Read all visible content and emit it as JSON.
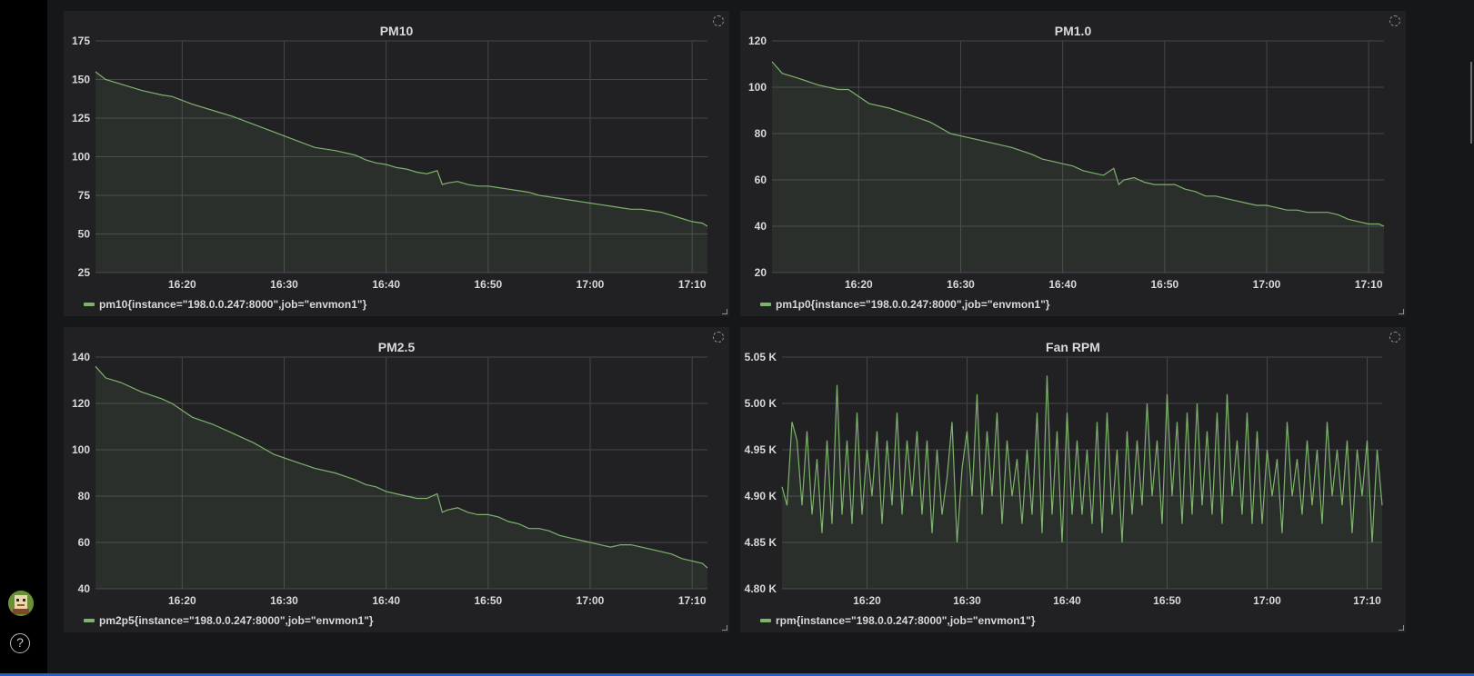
{
  "sidebar": {
    "help_label": "?"
  },
  "colors": {
    "series": "#7eb26d",
    "panel_bg": "#212124",
    "grid": "#464648"
  },
  "panels": [
    {
      "title": "PM10",
      "legend": "pm10{instance=\"198.0.0.247:8000\",job=\"envmon1\"}"
    },
    {
      "title": "PM1.0",
      "legend": "pm1p0{instance=\"198.0.0.247:8000\",job=\"envmon1\"}"
    },
    {
      "title": "PM2.5",
      "legend": "pm2p5{instance=\"198.0.0.247:8000\",job=\"envmon1\"}"
    },
    {
      "title": "Fan RPM",
      "legend": "rpm{instance=\"198.0.0.247:8000\",job=\"envmon1\"}"
    }
  ],
  "chart_data": [
    {
      "type": "area",
      "title": "PM10",
      "xlabel": "",
      "ylabel": "",
      "ylim": [
        25,
        175
      ],
      "yticks": [
        "25",
        "50",
        "75",
        "100",
        "125",
        "150",
        "175"
      ],
      "xticks": [
        "16:20",
        "16:30",
        "16:40",
        "16:50",
        "17:00",
        "17:10"
      ],
      "x_range_min": [
        11.5,
        71.5
      ],
      "series": [
        {
          "name": "pm10{instance=\"198.0.0.247:8000\",job=\"envmon1\"}",
          "x": [
            11.5,
            12.5,
            14,
            16,
            18,
            19,
            21,
            23,
            25,
            27,
            29,
            31,
            33,
            35,
            37,
            38,
            39,
            40,
            41,
            42,
            43,
            44,
            45,
            45.5,
            46,
            47,
            48,
            49,
            50,
            51,
            52,
            53,
            54,
            55,
            56,
            57,
            58,
            59,
            60,
            61,
            62,
            63,
            64,
            65,
            66,
            67,
            68,
            69,
            70,
            71,
            71.5
          ],
          "y": [
            155,
            150,
            147,
            143,
            140,
            139,
            134,
            130,
            126,
            121,
            116,
            111,
            106,
            104,
            101,
            98,
            96,
            95,
            93,
            92,
            90,
            89,
            91,
            82,
            83,
            84,
            82,
            81,
            81,
            80,
            79,
            78,
            77,
            75,
            74,
            73,
            72,
            71,
            70,
            69,
            68,
            67,
            66,
            66,
            65,
            64,
            62,
            60,
            58,
            57,
            55
          ]
        }
      ]
    },
    {
      "type": "area",
      "title": "PM1.0",
      "xlabel": "",
      "ylabel": "",
      "ylim": [
        20,
        120
      ],
      "yticks": [
        "20",
        "40",
        "60",
        "80",
        "100",
        "120"
      ],
      "xticks": [
        "16:20",
        "16:30",
        "16:40",
        "16:50",
        "17:00",
        "17:10"
      ],
      "x_range_min": [
        11.5,
        71.5
      ],
      "series": [
        {
          "name": "pm1p0{instance=\"198.0.0.247:8000\",job=\"envmon1\"}",
          "x": [
            11.5,
            12.5,
            14,
            16,
            18,
            19,
            21,
            23,
            25,
            27,
            29,
            31,
            33,
            35,
            37,
            38,
            39,
            40,
            41,
            42,
            43,
            44,
            45,
            45.5,
            46,
            47,
            48,
            49,
            50,
            51,
            52,
            53,
            54,
            55,
            56,
            57,
            58,
            59,
            60,
            61,
            62,
            63,
            64,
            65,
            66,
            67,
            68,
            69,
            70,
            71,
            71.5
          ],
          "y": [
            111,
            106,
            104,
            101,
            99,
            99,
            93,
            91,
            88,
            85,
            80,
            78,
            76,
            74,
            71,
            69,
            68,
            67,
            66,
            64,
            63,
            62,
            65,
            58,
            60,
            61,
            59,
            58,
            58,
            58,
            56,
            55,
            53,
            53,
            52,
            51,
            50,
            49,
            49,
            48,
            47,
            47,
            46,
            46,
            46,
            45,
            43,
            42,
            41,
            41,
            40
          ]
        }
      ]
    },
    {
      "type": "area",
      "title": "PM2.5",
      "xlabel": "",
      "ylabel": "",
      "ylim": [
        40,
        140
      ],
      "yticks": [
        "40",
        "60",
        "80",
        "100",
        "120",
        "140"
      ],
      "xticks": [
        "16:20",
        "16:30",
        "16:40",
        "16:50",
        "17:00",
        "17:10"
      ],
      "x_range_min": [
        11.5,
        71.5
      ],
      "series": [
        {
          "name": "pm2p5{instance=\"198.0.0.247:8000\",job=\"envmon1\"}",
          "x": [
            11.5,
            12.5,
            14,
            16,
            18,
            19,
            21,
            23,
            25,
            27,
            29,
            31,
            33,
            35,
            37,
            38,
            39,
            40,
            41,
            42,
            43,
            44,
            45,
            45.5,
            46,
            47,
            48,
            49,
            50,
            51,
            52,
            53,
            54,
            55,
            56,
            57,
            58,
            59,
            60,
            61,
            62,
            63,
            64,
            65,
            66,
            67,
            68,
            69,
            70,
            71,
            71.5
          ],
          "y": [
            136,
            131,
            129,
            125,
            122,
            120,
            114,
            111,
            107,
            103,
            98,
            95,
            92,
            90,
            87,
            85,
            84,
            82,
            81,
            80,
            79,
            79,
            81,
            73,
            74,
            75,
            73,
            72,
            72,
            71,
            69,
            68,
            66,
            66,
            65,
            63,
            62,
            61,
            60,
            59,
            58,
            59,
            59,
            58,
            57,
            56,
            55,
            53,
            52,
            51,
            49
          ]
        }
      ]
    },
    {
      "type": "area",
      "title": "Fan RPM",
      "xlabel": "",
      "ylabel": "",
      "ylim": [
        4800,
        5050
      ],
      "yticks": [
        "4.80 K",
        "4.85 K",
        "4.90 K",
        "4.95 K",
        "5.00 K",
        "5.05 K"
      ],
      "xticks": [
        "16:20",
        "16:30",
        "16:40",
        "16:50",
        "17:00",
        "17:10"
      ],
      "x_range_min": [
        11.5,
        71.5
      ],
      "series": [
        {
          "name": "rpm{instance=\"198.0.0.247:8000\",job=\"envmon1\"}",
          "x": [
            11.5,
            12,
            12.5,
            13,
            13.5,
            14,
            14.5,
            15,
            15.5,
            16,
            16.5,
            17,
            17.5,
            18,
            18.5,
            19,
            19.5,
            20,
            20.5,
            21,
            21.5,
            22,
            22.5,
            23,
            23.5,
            24,
            24.5,
            25,
            25.5,
            26,
            26.5,
            27,
            27.5,
            28,
            28.5,
            29,
            29.5,
            30,
            30.5,
            31,
            31.5,
            32,
            32.5,
            33,
            33.5,
            34,
            34.5,
            35,
            35.5,
            36,
            36.5,
            37,
            37.5,
            38,
            38.5,
            39,
            39.5,
            40,
            40.5,
            41,
            41.5,
            42,
            42.5,
            43,
            43.5,
            44,
            44.5,
            45,
            45.5,
            46,
            46.5,
            47,
            47.5,
            48,
            48.5,
            49,
            49.5,
            50,
            50.5,
            51,
            51.5,
            52,
            52.5,
            53,
            53.5,
            54,
            54.5,
            55,
            55.5,
            56,
            56.5,
            57,
            57.5,
            58,
            58.5,
            59,
            59.5,
            60,
            60.5,
            61,
            61.5,
            62,
            62.5,
            63,
            63.5,
            64,
            64.5,
            65,
            65.5,
            66,
            66.5,
            67,
            67.5,
            68,
            68.5,
            69,
            69.5,
            70,
            70.5,
            71,
            71.5
          ],
          "y": [
            4910,
            4890,
            4980,
            4960,
            4890,
            4970,
            4880,
            4940,
            4860,
            4960,
            4870,
            5020,
            4880,
            4960,
            4870,
            4990,
            4880,
            4950,
            4900,
            4970,
            4870,
            4960,
            4890,
            4990,
            4880,
            4960,
            4900,
            4970,
            4880,
            4960,
            4860,
            4950,
            4880,
            4920,
            4980,
            4850,
            4930,
            4970,
            4900,
            5010,
            4880,
            4970,
            4900,
            4990,
            4870,
            4960,
            4900,
            4940,
            4870,
            4950,
            4880,
            4990,
            4860,
            5030,
            4880,
            4970,
            4850,
            4990,
            4880,
            4960,
            4880,
            4950,
            4870,
            4980,
            4860,
            4990,
            4880,
            4950,
            4850,
            4970,
            4880,
            4960,
            4890,
            5000,
            4900,
            4960,
            4870,
            5010,
            4900,
            4980,
            4870,
            4990,
            4880,
            5000,
            4890,
            4970,
            4880,
            4990,
            4870,
            5010,
            4900,
            4960,
            4880,
            4990,
            4870,
            4970,
            4870,
            4950,
            4900,
            4940,
            4860,
            4980,
            4900,
            4940,
            4880,
            4960,
            4890,
            4950,
            4870,
            4980,
            4900,
            4950,
            4890,
            4960,
            4860,
            4950,
            4900,
            4960,
            4850,
            4950,
            4890
          ]
        }
      ]
    }
  ]
}
